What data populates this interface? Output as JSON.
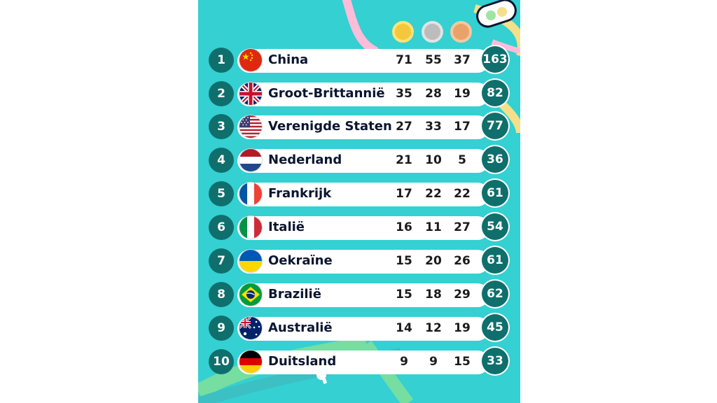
{
  "colors": {
    "panel": "#34d0d2",
    "badge": "#0f6f6c",
    "gold": "#f6c73d",
    "silver": "#bcbcbc",
    "bronze": "#e9a36a"
  },
  "medal_icons": [
    "gold-medal-icon",
    "silver-medal-icon",
    "bronze-medal-icon"
  ],
  "rows": [
    {
      "rank": "1",
      "flag": "china-flag-icon",
      "country": "China",
      "gold": "71",
      "silver": "55",
      "bronze": "37",
      "total": "163"
    },
    {
      "rank": "2",
      "flag": "uk-flag-icon",
      "country": "Groot-Brittannië",
      "gold": "35",
      "silver": "28",
      "bronze": "19",
      "total": "82"
    },
    {
      "rank": "3",
      "flag": "usa-flag-icon",
      "country": "Verenigde Staten",
      "gold": "27",
      "silver": "33",
      "bronze": "17",
      "total": "77"
    },
    {
      "rank": "4",
      "flag": "netherlands-flag-icon",
      "country": "Nederland",
      "gold": "21",
      "silver": "10",
      "bronze": "5",
      "total": "36"
    },
    {
      "rank": "5",
      "flag": "france-flag-icon",
      "country": "Frankrijk",
      "gold": "17",
      "silver": "22",
      "bronze": "22",
      "total": "61"
    },
    {
      "rank": "6",
      "flag": "italy-flag-icon",
      "country": "Italië",
      "gold": "16",
      "silver": "11",
      "bronze": "27",
      "total": "54"
    },
    {
      "rank": "7",
      "flag": "ukraine-flag-icon",
      "country": "Oekraïne",
      "gold": "15",
      "silver": "20",
      "bronze": "26",
      "total": "61"
    },
    {
      "rank": "8",
      "flag": "brazil-flag-icon",
      "country": "Brazilië",
      "gold": "15",
      "silver": "18",
      "bronze": "29",
      "total": "62"
    },
    {
      "rank": "9",
      "flag": "australia-flag-icon",
      "country": "Australië",
      "gold": "14",
      "silver": "12",
      "bronze": "19",
      "total": "45"
    },
    {
      "rank": "10",
      "flag": "germany-flag-icon",
      "country": "Duitsland",
      "gold": "9",
      "silver": "9",
      "bronze": "15",
      "total": "33"
    }
  ]
}
